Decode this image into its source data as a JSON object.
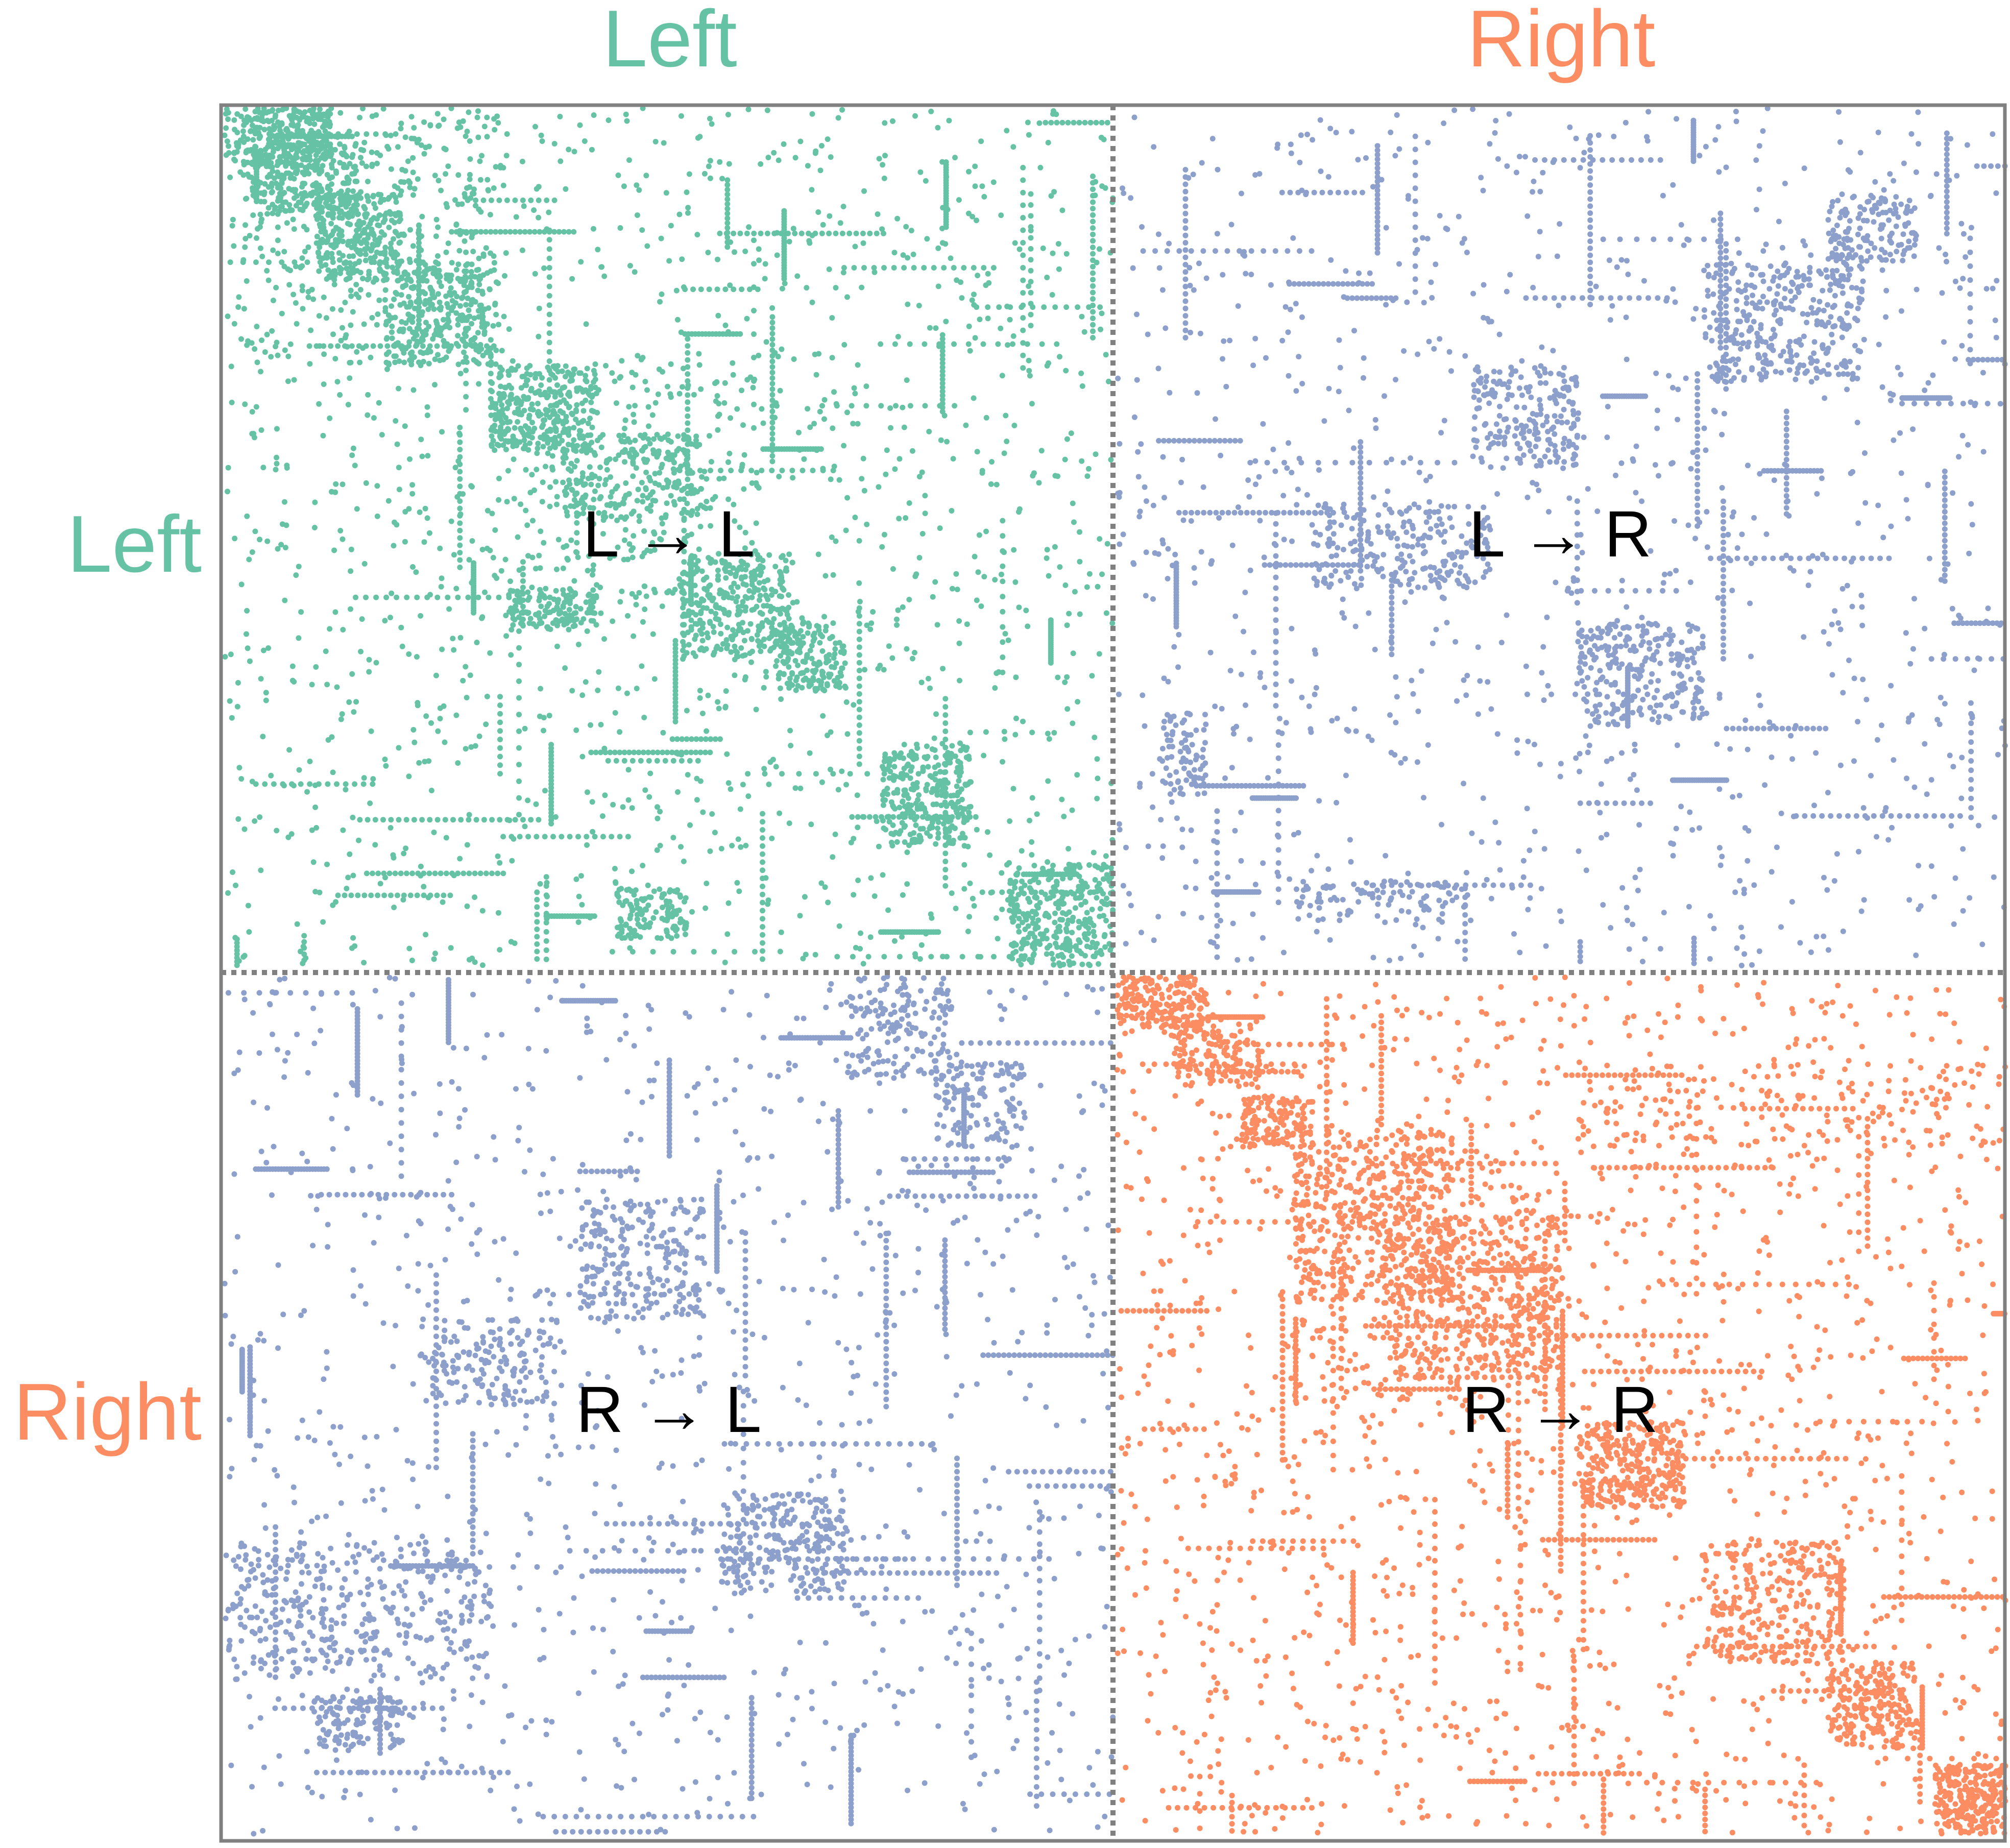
{
  "chart_data": {
    "type": "heatmap",
    "description_of_marks": "Binary adjacency matrix rendered as a scatter of dots, split into four hemisphere blocks",
    "column_labels": [
      "Left",
      "Right"
    ],
    "row_labels": [
      "Left",
      "Right"
    ],
    "label_colors": {
      "Left": "#66c2a5",
      "Right": "#fc8d62"
    },
    "quadrants": [
      {
        "id": "LL",
        "label": "L → L",
        "row": "Left",
        "col": "Left",
        "color": "#66c2a5"
      },
      {
        "id": "LR",
        "label": "L → R",
        "row": "Left",
        "col": "Right",
        "color": "#8da0cb"
      },
      {
        "id": "RL",
        "label": "R → L",
        "row": "Right",
        "col": "Left",
        "color": "#8da0cb"
      },
      {
        "id": "RR",
        "label": "R → R",
        "row": "Right",
        "col": "Right",
        "color": "#fc8d62"
      }
    ],
    "divider": {
      "style": "dotted",
      "color": "#808080"
    },
    "frame_color": "#808080",
    "grid": false
  }
}
